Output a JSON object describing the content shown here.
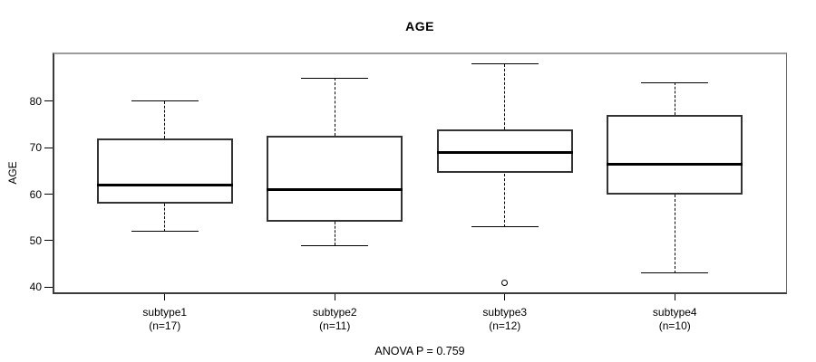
{
  "chart_data": {
    "type": "box",
    "title": "AGE",
    "xlabel": "",
    "ylabel": "AGE",
    "ylim": [
      38.5,
      90.5
    ],
    "yticks": [
      40,
      50,
      60,
      70,
      80
    ],
    "grid": false,
    "legend": null,
    "annotation": "ANOVA P = 0.759",
    "categories": [
      "subtype1",
      "subtype2",
      "subtype3",
      "subtype4"
    ],
    "groups": [
      {
        "label": "subtype1",
        "n": 17,
        "n_label": "(n=17)",
        "whisker_low": 52,
        "q1": 58,
        "median": 62,
        "q3": 72,
        "whisker_high": 80,
        "outliers": []
      },
      {
        "label": "subtype2",
        "n": 11,
        "n_label": "(n=11)",
        "whisker_low": 49,
        "q1": 54,
        "median": 61,
        "q3": 72.5,
        "whisker_high": 85,
        "outliers": []
      },
      {
        "label": "subtype3",
        "n": 12,
        "n_label": "(n=12)",
        "whisker_low": 53,
        "q1": 64.5,
        "median": 69,
        "q3": 74,
        "whisker_high": 88,
        "outliers": [
          41
        ]
      },
      {
        "label": "subtype4",
        "n": 10,
        "n_label": "(n=10)",
        "whisker_low": 43,
        "q1": 60,
        "median": 66.5,
        "q3": 77,
        "whisker_high": 84,
        "outliers": []
      }
    ]
  }
}
